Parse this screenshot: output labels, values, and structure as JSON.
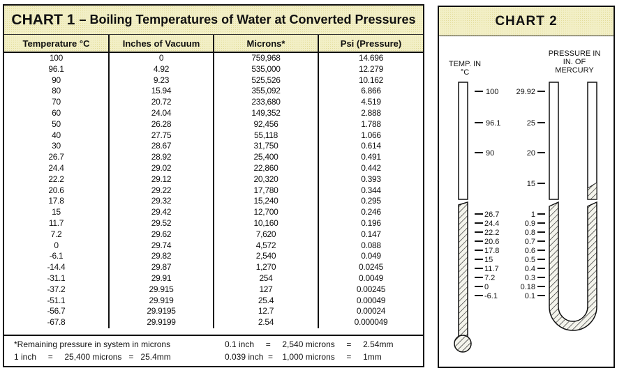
{
  "chart1": {
    "title_prefix": "CHART 1",
    "title_rest": "– Boiling Temperatures of Water at Converted Pressures",
    "headers": [
      "Temperature °C",
      "Inches of Vacuum",
      "Microns*",
      "Psi (Pressure)"
    ],
    "rows": [
      [
        "100",
        "0",
        "759,968",
        "14.696"
      ],
      [
        "96.1",
        "4.92",
        "535,000",
        "12.279"
      ],
      [
        "90",
        "9.23",
        "525,526",
        "10.162"
      ],
      [
        "80",
        "15.94",
        "355,092",
        "6.866"
      ],
      [
        "70",
        "20.72",
        "233,680",
        "4.519"
      ],
      [
        "60",
        "24.04",
        "149,352",
        "2.888"
      ],
      [
        "50",
        "26.28",
        "92,456",
        "1.788"
      ],
      [
        "40",
        "27.75",
        "55,118",
        "1.066"
      ],
      [
        "30",
        "28.67",
        "31,750",
        "0.614"
      ],
      [
        "26.7",
        "28.92",
        "25,400",
        "0.491"
      ],
      [
        "24.4",
        "29.02",
        "22,860",
        "0.442"
      ],
      [
        "22.2",
        "29.12",
        "20,320",
        "0.393"
      ],
      [
        "20.6",
        "29.22",
        "17,780",
        "0.344"
      ],
      [
        "17.8",
        "29.32",
        "15,240",
        "0.295"
      ],
      [
        "15",
        "29.42",
        "12,700",
        "0.246"
      ],
      [
        "11.7",
        "29.52",
        "10,160",
        "0.196"
      ],
      [
        "7.2",
        "29.62",
        "7,620",
        "0.147"
      ],
      [
        "0",
        "29.74",
        "4,572",
        "0.088"
      ],
      [
        "-6.1",
        "29.82",
        "2,540",
        "0.049"
      ],
      [
        "-14.4",
        "29.87",
        "1,270",
        "0.0245"
      ],
      [
        "-31.1",
        "29.91",
        "254",
        "0.0049"
      ],
      [
        "-37.2",
        "29.915",
        "127",
        "0.00245"
      ],
      [
        "-51.1",
        "29.919",
        "25.4",
        "0.00049"
      ],
      [
        "-56.7",
        "29.9195",
        "12.7",
        "0.00024"
      ],
      [
        "-67.8",
        "29.9199",
        "2.54",
        "0.000049"
      ]
    ],
    "footnote": "*Remaining pressure in system in microns",
    "conv1": "1 inch     =     25,400 microns   =   25.4mm",
    "conv2": "0.1 inch     =     2,540 microns     =     2.54mm",
    "conv3": "0.039 inch  =    1,000 microns     =     1mm"
  },
  "chart2": {
    "title": "CHART 2",
    "temp_label": [
      "TEMP. IN",
      "°C"
    ],
    "pressure_label": [
      "PRESSURE IN",
      "IN. OF",
      "MERCURY"
    ],
    "temp_ticks_upper": [
      "100",
      "96.1",
      "90"
    ],
    "temp_ticks_lower": [
      "26.7",
      "24.4",
      "22.2",
      "20.6",
      "17.8",
      "15",
      "11.7",
      "7.2",
      "0",
      "-6.1"
    ],
    "pressure_ticks_upper": [
      "29.92",
      "25",
      "20",
      "15"
    ],
    "pressure_ticks_lower": [
      "1",
      "0.9",
      "0.8",
      "0.7",
      "0.6",
      "0.5",
      "0.4",
      "0.3",
      "0.18",
      "0.1"
    ]
  }
}
